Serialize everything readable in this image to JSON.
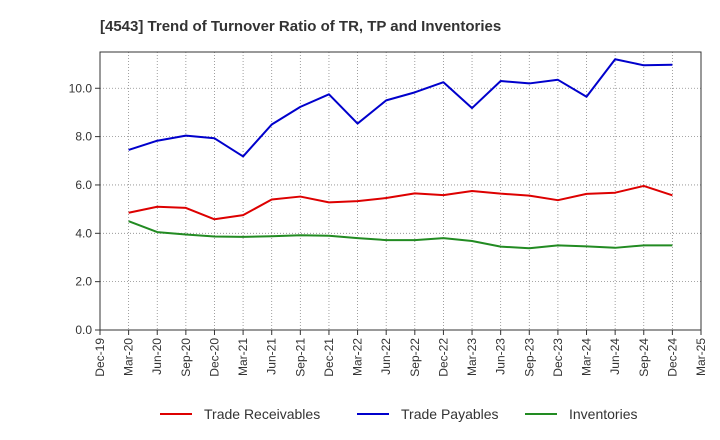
{
  "chart_data": {
    "type": "line",
    "title": "[4543]  Trend of Turnover Ratio of TR, TP and Inventories",
    "xlabel": "",
    "ylabel": "",
    "ylim": [
      0,
      11.5
    ],
    "yticks": [
      0,
      2,
      4,
      6,
      8,
      10
    ],
    "ytick_labels": [
      "0.0",
      "2.0",
      "4.0",
      "6.0",
      "8.0",
      "10.0"
    ],
    "x": [
      "Dec-19",
      "Mar-20",
      "Jun-20",
      "Sep-20",
      "Dec-20",
      "Mar-21",
      "Jun-21",
      "Sep-21",
      "Dec-21",
      "Mar-22",
      "Jun-22",
      "Sep-22",
      "Dec-22",
      "Mar-23",
      "Jun-23",
      "Sep-23",
      "Dec-23",
      "Mar-24",
      "Jun-24",
      "Sep-24",
      "Dec-24",
      "Mar-25"
    ],
    "xtick_labels": [
      "Dec-19",
      "Mar-20",
      "Jun-20",
      "Sep-20",
      "Dec-20",
      "Mar-21",
      "Jun-21",
      "Sep-21",
      "Dec-21",
      "Mar-22",
      "Jun-22",
      "Sep-22",
      "Dec-22",
      "Mar-23",
      "Jun-23",
      "Sep-23",
      "Dec-23",
      "Mar-24",
      "Jun-24",
      "Sep-24",
      "Dec-24",
      "Mar-25"
    ],
    "grid": true,
    "legend_position": "bottom",
    "series": [
      {
        "name": "Trade Receivables",
        "color": "#dd0000",
        "values": [
          null,
          4.85,
          5.1,
          5.05,
          4.58,
          4.75,
          5.4,
          5.52,
          5.28,
          5.33,
          5.46,
          5.65,
          5.58,
          5.75,
          5.64,
          5.56,
          5.37,
          5.63,
          5.68,
          5.96,
          5.57,
          null
        ]
      },
      {
        "name": "Trade Payables",
        "color": "#0000cc",
        "values": [
          null,
          7.45,
          7.83,
          8.04,
          7.93,
          7.18,
          8.5,
          9.23,
          9.75,
          8.54,
          9.5,
          9.83,
          10.25,
          9.18,
          10.3,
          10.2,
          10.35,
          9.65,
          11.2,
          10.95,
          10.97,
          null
        ]
      },
      {
        "name": "Inventories",
        "color": "#228b22",
        "values": [
          null,
          4.5,
          4.05,
          3.95,
          3.87,
          3.85,
          3.88,
          3.92,
          3.9,
          3.8,
          3.72,
          3.72,
          3.8,
          3.68,
          3.45,
          3.38,
          3.5,
          3.46,
          3.4,
          3.5,
          3.5,
          null
        ]
      }
    ]
  }
}
